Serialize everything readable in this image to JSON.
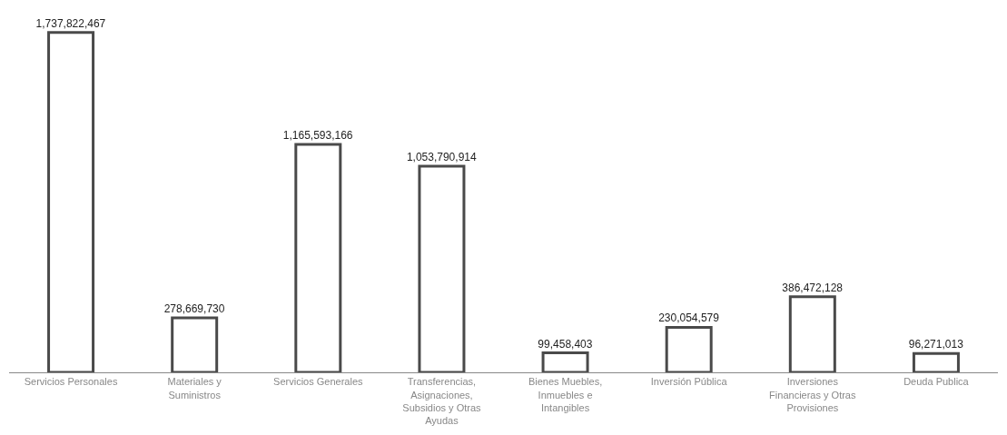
{
  "chart_data": {
    "type": "bar",
    "categories": [
      "Servicios Personales",
      "Materiales y Suministros",
      "Servicios Generales",
      "Transferencias, Asignaciones, Subsidios y Otras Ayudas",
      "Bienes Muebles, Inmuebles e Intangibles",
      "Inversión Pública",
      "Inversiones Financieras y Otras Provisiones",
      "Deuda Publica"
    ],
    "values": [
      1737822467,
      278669730,
      1165593166,
      1053790914,
      99458403,
      230054579,
      386472128,
      96271013
    ],
    "value_labels": [
      "1,737,822,467",
      "278,669,730",
      "1,165,593,166",
      "1,053,790,914",
      "99,458,403",
      "230,054,579",
      "386,472,128",
      "96,271,013"
    ],
    "color": "#ffffff",
    "legend": false
  }
}
